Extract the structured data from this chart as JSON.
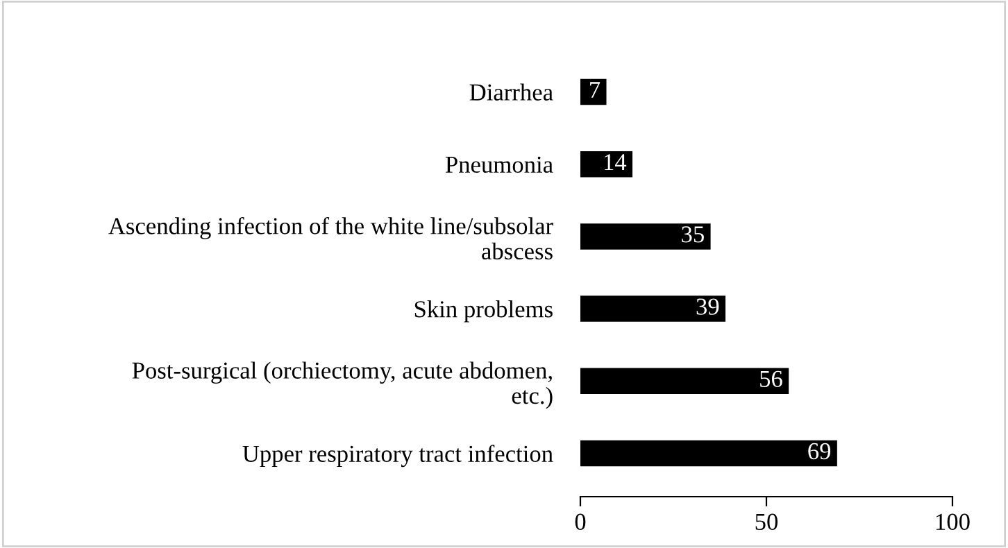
{
  "chart_data": {
    "type": "bar",
    "orientation": "horizontal",
    "categories": [
      "Diarrhea",
      "Pneumonia",
      "Ascending infection of the white line/subsolar\nabscess",
      "Skin problems",
      "Post-surgical (orchiectomy, acute abdomen,\netc.)",
      "Upper respiratory tract infection"
    ],
    "values": [
      7,
      14,
      35,
      39,
      56,
      69
    ],
    "color": "#000000",
    "xlim": [
      0,
      100
    ],
    "xticks": [
      0,
      50,
      100
    ],
    "data_labels": true,
    "grid": false,
    "legend": false
  }
}
